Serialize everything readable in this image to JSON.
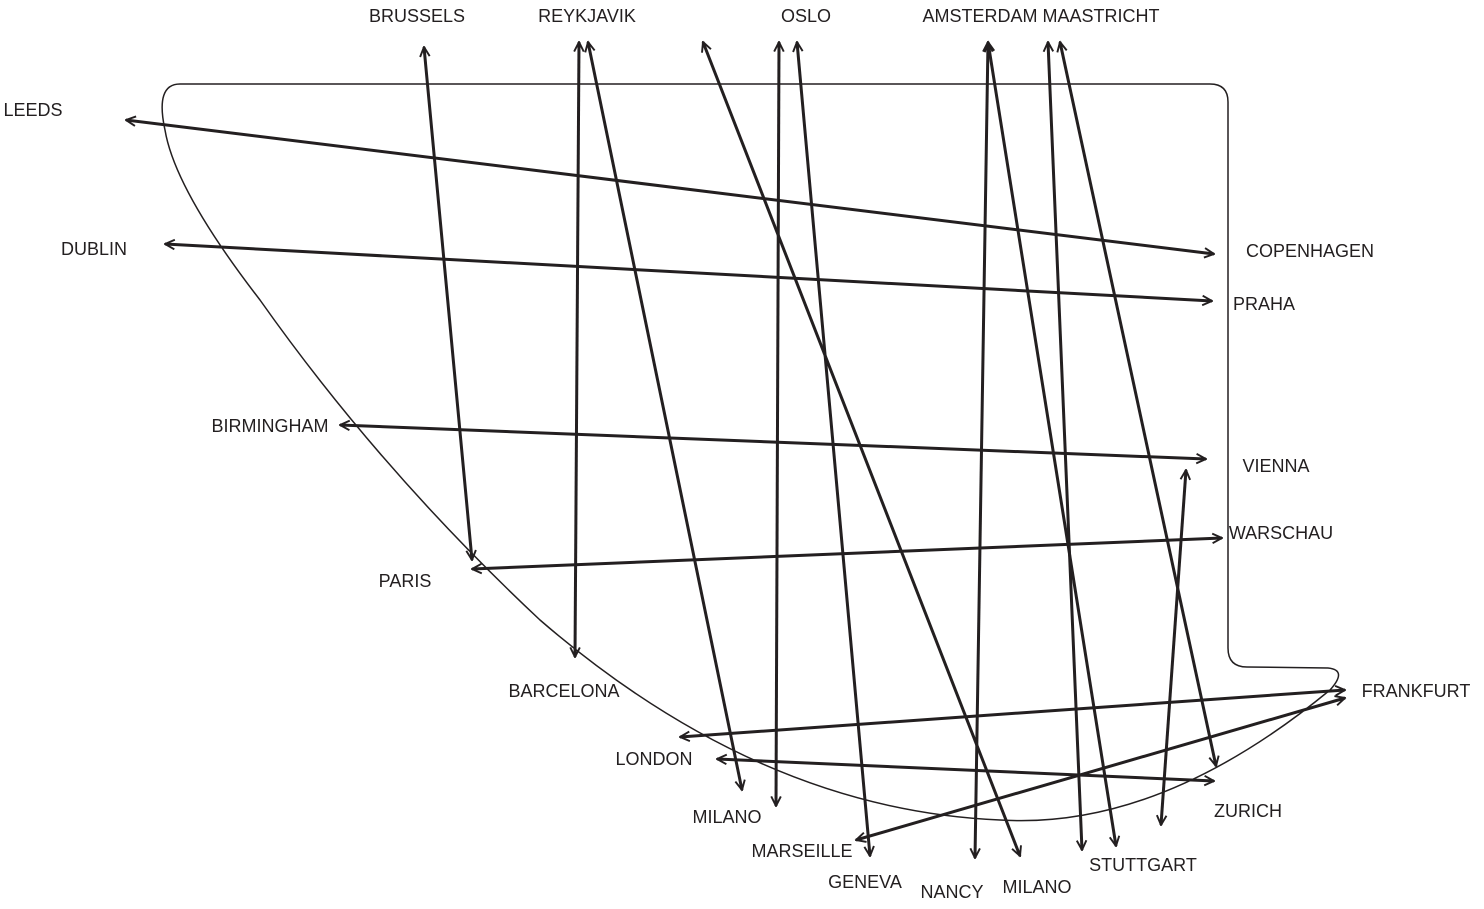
{
  "labels": [
    "BRUSSELS",
    "REYKJAVIK",
    "OSLO",
    "AMSTERDAM",
    "MAASTRICHT",
    "LEEDS",
    "DUBLIN",
    "COPENHAGEN",
    "PRAHA",
    "BIRMINGHAM",
    "VIENNA",
    "WARSCHAU",
    "PARIS",
    "BARCELONA",
    "FRANKFURT",
    "LONDON",
    "ZURICH",
    "MILANO",
    "MARSEILLE",
    "GENEVA",
    "NANCY",
    "MILANO",
    "STUTTGART"
  ]
}
